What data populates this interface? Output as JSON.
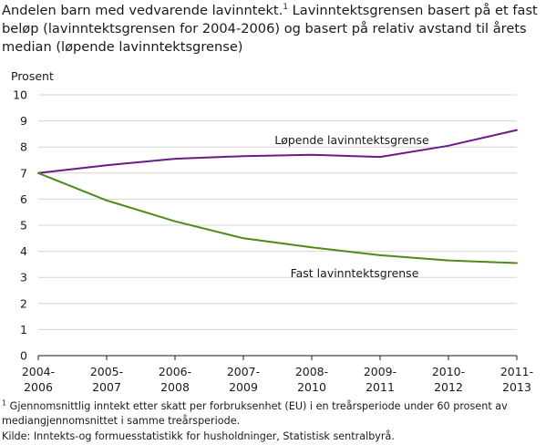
{
  "title": {
    "part1": "Andelen barn med vedvarende lavinntekt.",
    "marker": "1",
    "part2": " Lavinntektsgrensen basert på et fast beløp (lavinntektsgrensen for 2004-2006) og basert på relativ avstand til årets median (løpende lavinntektsgrense)"
  },
  "footnote": {
    "marker": "1",
    "text": " Gjennomsnittlig inntekt etter skatt per forbruksenhet (EU) i en treårsperiode under 60 prosent av mediangjennomsnittet i samme treårsperiode."
  },
  "source": "Kilde: Inntekts-og formuesstatistikk for husholdninger, Statistisk sentralbyrå.",
  "chart_data": {
    "type": "line",
    "ylabel": "Prosent",
    "ylim": [
      0,
      10
    ],
    "yticks": [
      "0",
      "1",
      "2",
      "3",
      "4",
      "5",
      "6",
      "7",
      "8",
      "9",
      "10"
    ],
    "categories": [
      [
        "2004-",
        "2006"
      ],
      [
        "2005-",
        "2007"
      ],
      [
        "2006-",
        "2008"
      ],
      [
        "2007-",
        "2009"
      ],
      [
        "2008-",
        "2010"
      ],
      [
        "2009-",
        "2011"
      ],
      [
        "2010-",
        "2012"
      ],
      [
        "2011-",
        "2013"
      ]
    ],
    "grid": "horizontal",
    "series": [
      {
        "name": "Løpende lavinntektsgrense",
        "color": "#6a1b86",
        "values": [
          7.0,
          7.3,
          7.55,
          7.65,
          7.7,
          7.62,
          8.05,
          8.65
        ]
      },
      {
        "name": "Fast lavinntektsgrense",
        "color": "#4d8a1a",
        "values": [
          7.0,
          5.95,
          5.15,
          4.5,
          4.15,
          3.85,
          3.65,
          3.55
        ]
      }
    ]
  }
}
